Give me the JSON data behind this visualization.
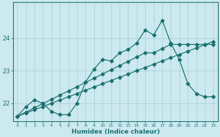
{
  "xlabel": "Humidex (Indice chaleur)",
  "bg_color": "#cce9ef",
  "line_color": "#1a7070",
  "grid_color": "#aacfd8",
  "xlim": [
    -0.5,
    23.5
  ],
  "ylim": [
    21.45,
    25.1
  ],
  "yticks": [
    22,
    23,
    24
  ],
  "xticks": [
    0,
    1,
    2,
    3,
    4,
    5,
    6,
    7,
    8,
    9,
    10,
    11,
    12,
    13,
    14,
    15,
    16,
    17,
    18,
    19,
    20,
    21,
    22,
    23
  ],
  "series1_x": [
    0,
    1,
    2,
    3,
    4,
    5,
    6,
    7,
    8,
    9,
    10,
    11,
    12,
    13,
    14,
    15,
    16,
    17,
    18,
    19,
    20,
    21,
    22,
    23
  ],
  "series1_y": [
    21.6,
    21.9,
    22.1,
    22.0,
    21.75,
    21.65,
    21.65,
    22.0,
    22.65,
    23.05,
    23.35,
    23.3,
    23.55,
    23.65,
    23.85,
    24.25,
    24.1,
    24.55,
    23.85,
    23.35,
    22.6,
    22.3,
    22.2,
    22.2
  ],
  "series2_x": [
    0,
    1,
    2,
    3,
    4,
    5,
    6,
    7,
    8,
    9,
    10,
    11,
    12,
    13,
    14,
    15,
    16,
    17,
    18,
    19,
    20,
    21,
    22,
    23
  ],
  "series2_y": [
    21.6,
    21.73,
    21.86,
    21.99,
    22.12,
    22.25,
    22.38,
    22.51,
    22.64,
    22.77,
    22.9,
    23.03,
    23.16,
    23.29,
    23.42,
    23.55,
    23.55,
    23.68,
    23.81,
    23.81,
    23.81,
    23.81,
    23.81,
    23.81
  ],
  "series3_x": [
    0,
    1,
    2,
    3,
    4,
    5,
    6,
    7,
    8,
    9,
    10,
    11,
    12,
    13,
    14,
    15,
    16,
    17,
    18,
    19,
    20,
    21,
    22,
    23
  ],
  "series3_y": [
    21.6,
    21.7,
    21.8,
    21.9,
    22.0,
    22.1,
    22.2,
    22.3,
    22.4,
    22.5,
    22.6,
    22.7,
    22.8,
    22.9,
    23.0,
    23.1,
    23.2,
    23.3,
    23.4,
    23.5,
    23.6,
    23.7,
    23.8,
    23.9
  ]
}
